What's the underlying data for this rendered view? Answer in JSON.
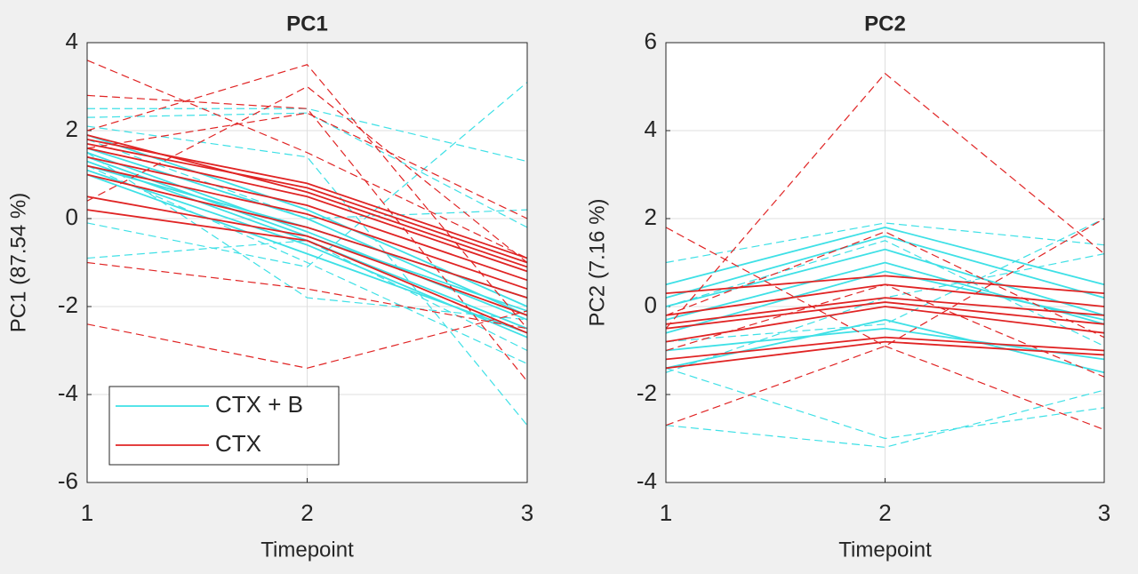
{
  "chart_data": [
    {
      "type": "line",
      "title": "PC1",
      "xlabel": "Timepoint",
      "ylabel": "PC1 (87.54 %)",
      "x": [
        1,
        2,
        3
      ],
      "xlim": [
        1,
        3
      ],
      "xticks": [
        1,
        2,
        3
      ],
      "ylim": [
        -6,
        4
      ],
      "yticks": [
        -6,
        -4,
        -2,
        0,
        2,
        4
      ],
      "grid": true,
      "legend": "lower left",
      "series": [
        {
          "name": "CTX + B",
          "color": "#3ee0e6",
          "solid": [
            [
              1.5,
              -0.3,
              -2.3
            ],
            [
              1.3,
              -0.5,
              -2.5
            ],
            [
              1.1,
              -0.6,
              -2.7
            ],
            [
              1.9,
              0.2,
              -2.0
            ],
            [
              1.2,
              -0.2,
              -1.8
            ],
            [
              1.6,
              0.0,
              -2.2
            ],
            [
              1.0,
              -0.8,
              -2.6
            ],
            [
              1.4,
              -0.4,
              -2.1
            ]
          ],
          "dashed": [
            [
              2.5,
              2.5,
              1.3
            ],
            [
              2.3,
              2.4,
              -0.2
            ],
            [
              -0.1,
              -1.1,
              3.1
            ],
            [
              -0.9,
              -0.5,
              -3.0
            ],
            [
              2.1,
              1.4,
              -4.7
            ],
            [
              1.5,
              -1.8,
              -2.3
            ],
            [
              1.8,
              0.0,
              0.2
            ],
            [
              1.2,
              -1.0,
              -3.3
            ]
          ]
        },
        {
          "name": "CTX",
          "color": "#e02424",
          "solid": [
            [
              1.8,
              0.8,
              -0.9
            ],
            [
              1.7,
              0.7,
              -1.0
            ],
            [
              1.6,
              0.5,
              -1.2
            ],
            [
              1.4,
              0.3,
              -1.4
            ],
            [
              1.2,
              0.1,
              -1.6
            ],
            [
              1.0,
              -0.2,
              -1.8
            ],
            [
              0.5,
              -0.4,
              -2.2
            ],
            [
              0.2,
              -0.5,
              -2.6
            ],
            [
              1.9,
              0.6,
              -1.1
            ]
          ],
          "dashed": [
            [
              3.6,
              1.5,
              -0.9
            ],
            [
              2.8,
              2.5,
              -3.7
            ],
            [
              2.0,
              3.5,
              -2.5
            ],
            [
              -1.0,
              -1.6,
              -2.5
            ],
            [
              -2.4,
              -3.4,
              -2.1
            ],
            [
              0.4,
              3.0,
              -1.0
            ],
            [
              1.6,
              2.4,
              0.0
            ]
          ]
        }
      ]
    },
    {
      "type": "line",
      "title": "PC2",
      "xlabel": "Timepoint",
      "ylabel": "PC2 (7.16 %)",
      "x": [
        1,
        2,
        3
      ],
      "xlim": [
        1,
        3
      ],
      "xticks": [
        1,
        2,
        3
      ],
      "ylim": [
        -4,
        6
      ],
      "yticks": [
        -4,
        -2,
        0,
        2,
        4,
        6
      ],
      "grid": true,
      "series": [
        {
          "color": "#3ee0e6",
          "solid": [
            [
              0.5,
              1.8,
              0.5
            ],
            [
              0.0,
              1.3,
              -0.2
            ],
            [
              -0.3,
              1.0,
              -0.4
            ],
            [
              -0.6,
              0.8,
              -0.3
            ],
            [
              -1.4,
              -0.3,
              -1.5
            ],
            [
              -1.0,
              -0.5,
              -1.2
            ],
            [
              0.2,
              1.6,
              0.2
            ]
          ],
          "dashed": [
            [
              1.0,
              1.9,
              1.4
            ],
            [
              -2.7,
              -3.2,
              -1.9
            ],
            [
              -1.4,
              -3.0,
              -2.3
            ],
            [
              -0.8,
              -0.4,
              2.0
            ],
            [
              0.0,
              1.5,
              -0.9
            ],
            [
              -1.5,
              0.2,
              1.2
            ]
          ]
        },
        {
          "color": "#e02424",
          "solid": [
            [
              0.3,
              0.7,
              0.3
            ],
            [
              -0.2,
              0.5,
              0.0
            ],
            [
              -0.4,
              0.2,
              -0.2
            ],
            [
              -0.5,
              0.1,
              -0.4
            ],
            [
              -0.8,
              0.0,
              -0.6
            ],
            [
              -1.2,
              -0.7,
              -1.0
            ],
            [
              -1.4,
              -0.8,
              -1.1
            ]
          ],
          "dashed": [
            [
              -0.5,
              5.3,
              1.2
            ],
            [
              1.8,
              -0.9,
              -2.8
            ],
            [
              -2.7,
              -0.9,
              2.0
            ],
            [
              -0.2,
              1.7,
              -0.7
            ],
            [
              -1.0,
              0.5,
              -1.6
            ]
          ]
        }
      ]
    }
  ]
}
